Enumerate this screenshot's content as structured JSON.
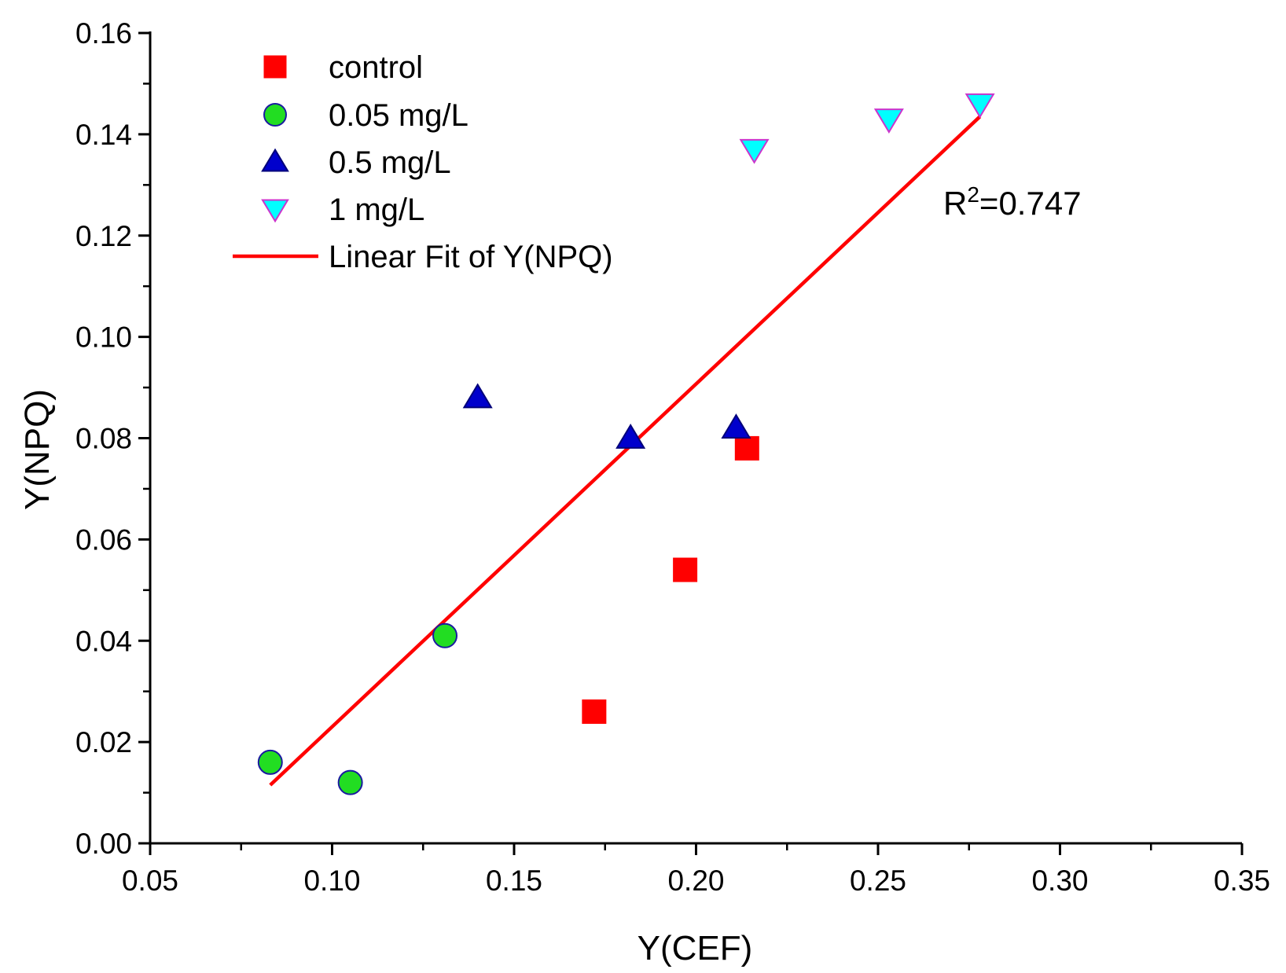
{
  "chart_data": {
    "type": "scatter",
    "xlabel": "Y(CEF)",
    "ylabel": "Y(NPQ)",
    "xlim": [
      0.05,
      0.35
    ],
    "ylim": [
      0.0,
      0.16
    ],
    "x_ticks": [
      "0.05",
      "0.10",
      "0.15",
      "0.20",
      "0.25",
      "0.30",
      "0.35"
    ],
    "y_ticks": [
      "0.00",
      "0.02",
      "0.04",
      "0.06",
      "0.08",
      "0.10",
      "0.12",
      "0.14",
      "0.16"
    ],
    "legend_position": "top-left",
    "series": [
      {
        "name": "control",
        "marker": "square",
        "color": "#ff0000",
        "edge": "#ff0000",
        "points": [
          [
            0.172,
            0.026
          ],
          [
            0.197,
            0.054
          ],
          [
            0.214,
            0.078
          ]
        ]
      },
      {
        "name": "0.05 mg/L",
        "marker": "circle",
        "color": "#22dd22",
        "edge": "#1a1aa0",
        "points": [
          [
            0.083,
            0.016
          ],
          [
            0.105,
            0.012
          ],
          [
            0.131,
            0.041
          ]
        ]
      },
      {
        "name": "0.5 mg/L",
        "marker": "triangle-up",
        "color": "#0000cc",
        "edge": "#00007a",
        "points": [
          [
            0.14,
            0.088
          ],
          [
            0.182,
            0.08
          ],
          [
            0.211,
            0.082
          ]
        ]
      },
      {
        "name": "1 mg/L",
        "marker": "triangle-down",
        "color": "#00ffff",
        "edge": "#cc33cc",
        "points": [
          [
            0.216,
            0.137
          ],
          [
            0.253,
            0.143
          ],
          [
            0.278,
            0.146
          ]
        ]
      }
    ],
    "fit": {
      "name": "Linear Fit of Y(NPQ)",
      "color": "#ff0000",
      "x": [
        0.083,
        0.278
      ],
      "y": [
        0.0115,
        0.1435
      ]
    },
    "annotation": {
      "r_base": "R",
      "r_sup": "2",
      "r_value": "=0.747"
    }
  }
}
